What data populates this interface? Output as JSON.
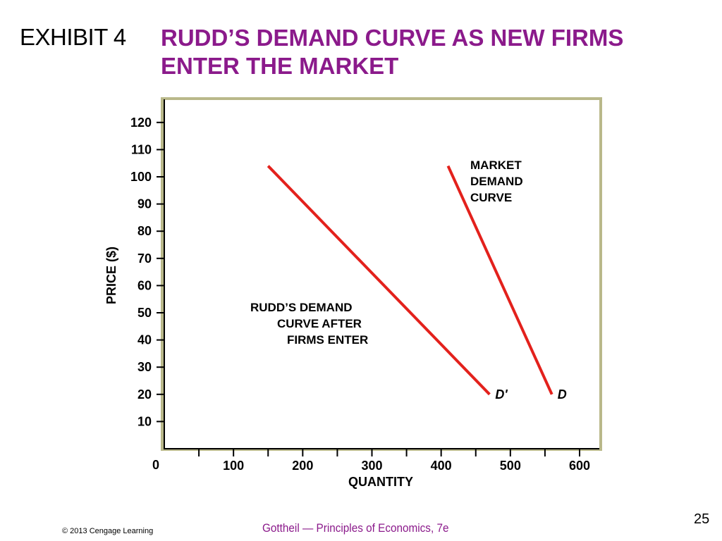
{
  "slide": {
    "exhibit_label": "EXHIBIT 4",
    "title_line1": "RUDD’S DEMAND CURVE AS NEW FIRMS",
    "title_line2": "ENTER THE MARKET",
    "copyright": "© 2013 Cengage Learning",
    "book": "Gottheil — Principles of Economics, 7e",
    "page_number": "25"
  },
  "colors": {
    "title": "#8b1a8b",
    "curve": "#e3211c",
    "frame": "#b9b88a"
  },
  "chart_data": {
    "type": "line",
    "title": "",
    "xlabel": "QUANTITY",
    "ylabel": "PRICE ($)",
    "xlim": [
      0,
      600
    ],
    "ylim": [
      0,
      120
    ],
    "x_origin_label": "0",
    "x_ticks": [
      100,
      200,
      300,
      400,
      500,
      600
    ],
    "y_ticks": [
      10,
      20,
      30,
      40,
      50,
      60,
      70,
      80,
      90,
      100,
      110,
      120
    ],
    "grid": false,
    "series": [
      {
        "name": "D'",
        "points": [
          [
            150,
            104
          ],
          [
            470,
            20
          ]
        ],
        "annotation": [
          "RUDD’S DEMAND",
          "CURVE AFTER",
          "FIRMS ENTER"
        ]
      },
      {
        "name": "D",
        "points": [
          [
            410,
            104
          ],
          [
            560,
            20
          ]
        ],
        "annotation": [
          "MARKET",
          "DEMAND",
          "CURVE"
        ]
      }
    ]
  }
}
